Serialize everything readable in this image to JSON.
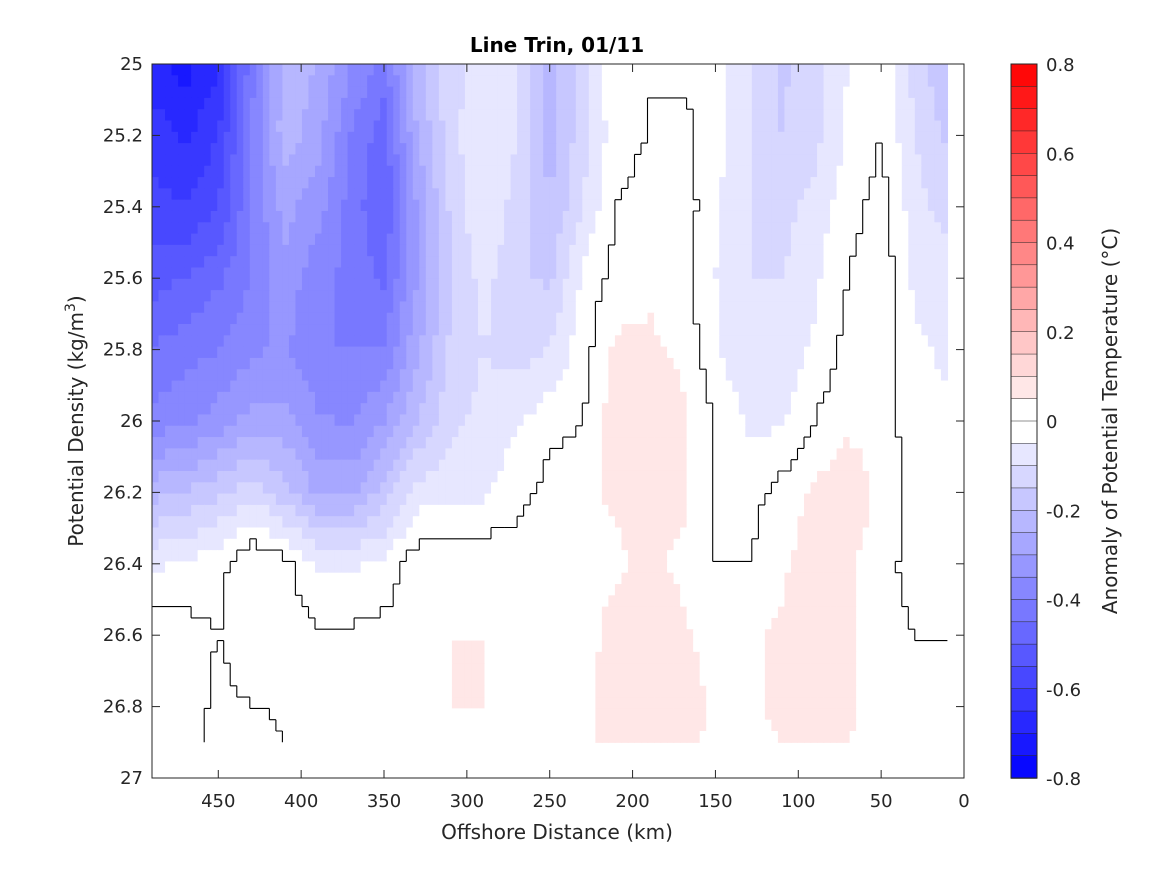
{
  "chart_data": {
    "type": "contour",
    "title": "Line Trin, 01/11",
    "xlabel": "Offshore Distance (km)",
    "ylabel": "Potential Density (kg/m",
    "ylabel_superscript": "3",
    "ylabel_suffix": ")",
    "colorbar_label": "Anomaly of Potential Temperature (°C)",
    "xlim": [
      490,
      0
    ],
    "ylim": [
      25,
      27
    ],
    "x_reversed": true,
    "y_reversed": true,
    "xticks": [
      450,
      400,
      350,
      300,
      250,
      200,
      150,
      100,
      50,
      0
    ],
    "yticks": [
      25,
      25.2,
      25.4,
      25.6,
      25.8,
      26,
      26.2,
      26.4,
      26.6,
      26.8,
      27
    ],
    "xtick_labels": [
      "450",
      "400",
      "350",
      "300",
      "250",
      "200",
      "150",
      "100",
      "50",
      "0"
    ],
    "ytick_labels": [
      "25",
      "25.2",
      "25.4",
      "25.6",
      "25.8",
      "26",
      "26.2",
      "26.4",
      "26.6",
      "26.8",
      "27"
    ],
    "clim": [
      -0.8,
      0.8
    ],
    "colorbar_levels": 32,
    "colorbar_ticks": [
      0.8,
      0.6,
      0.4,
      0.2,
      0,
      -0.2,
      -0.4,
      -0.6,
      -0.8
    ],
    "colorbar_tick_labels": [
      "0.8",
      "0.6",
      "0.4",
      "0.2",
      "0",
      "-0.2",
      "-0.4",
      "-0.6",
      "-0.8"
    ],
    "colormap": {
      "negative": "#0000ff",
      "zero": "#ffffff",
      "positive": "#ff0000"
    },
    "x": [
      490,
      470,
      450,
      430,
      410,
      390,
      370,
      350,
      330,
      310,
      290,
      270,
      250,
      230,
      210,
      190,
      170,
      150,
      130,
      110,
      90,
      70,
      50,
      30,
      10
    ],
    "y": [
      25.0,
      25.2,
      25.4,
      25.6,
      25.8,
      26.0,
      26.2,
      26.4,
      26.6,
      26.8,
      26.9
    ],
    "z": [
      [
        -0.68,
        -0.72,
        -0.66,
        -0.42,
        -0.22,
        -0.25,
        -0.35,
        -0.42,
        -0.22,
        -0.12,
        -0.08,
        -0.1,
        -0.22,
        -0.12,
        0.0,
        0.0,
        -0.02,
        -0.02,
        -0.1,
        -0.16,
        -0.12,
        -0.05,
        0.0,
        -0.12,
        -0.2
      ],
      [
        -0.62,
        -0.66,
        -0.6,
        -0.4,
        -0.22,
        -0.28,
        -0.4,
        -0.48,
        -0.25,
        -0.12,
        -0.05,
        -0.1,
        -0.22,
        -0.12,
        -0.02,
        0.0,
        0.02,
        -0.03,
        -0.1,
        -0.15,
        -0.12,
        -0.04,
        0.0,
        -0.1,
        -0.16
      ],
      [
        -0.58,
        -0.6,
        -0.55,
        -0.4,
        -0.28,
        -0.33,
        -0.42,
        -0.5,
        -0.3,
        -0.14,
        -0.05,
        -0.12,
        -0.2,
        -0.1,
        0.0,
        0.02,
        0.03,
        -0.04,
        -0.1,
        -0.12,
        -0.08,
        -0.02,
        0.02,
        -0.08,
        -0.12
      ],
      [
        -0.52,
        -0.5,
        -0.46,
        -0.4,
        -0.32,
        -0.38,
        -0.42,
        -0.46,
        -0.3,
        -0.16,
        -0.08,
        -0.14,
        -0.16,
        -0.04,
        0.02,
        0.04,
        0.02,
        -0.05,
        -0.1,
        -0.1,
        -0.06,
        0.0,
        0.04,
        -0.06,
        -0.08
      ],
      [
        -0.45,
        -0.42,
        -0.4,
        -0.36,
        -0.34,
        -0.4,
        -0.4,
        -0.4,
        -0.26,
        -0.14,
        -0.1,
        -0.12,
        -0.1,
        -0.02,
        0.06,
        0.06,
        0.04,
        -0.04,
        -0.1,
        -0.08,
        -0.04,
        0.02,
        0.03,
        -0.04,
        -0.06
      ],
      [
        -0.38,
        -0.36,
        -0.33,
        -0.28,
        -0.28,
        -0.34,
        -0.36,
        -0.3,
        -0.2,
        -0.12,
        -0.08,
        -0.06,
        -0.02,
        0.0,
        0.08,
        0.08,
        0.06,
        0.0,
        -0.06,
        -0.06,
        0.0,
        0.04,
        0.03,
        -0.03,
        -0.04
      ],
      [
        -0.22,
        -0.2,
        -0.16,
        -0.12,
        -0.18,
        -0.26,
        -0.26,
        -0.18,
        -0.08,
        -0.06,
        -0.06,
        -0.02,
        0.02,
        0.04,
        0.06,
        0.08,
        0.06,
        0.0,
        -0.02,
        0.02,
        0.06,
        0.08,
        0.04,
        -0.02,
        -0.03
      ],
      [
        -0.06,
        -0.04,
        -0.02,
        0.05,
        0.02,
        -0.06,
        -0.06,
        -0.04,
        0.03,
        0.04,
        0.04,
        0.03,
        0.04,
        0.03,
        0.04,
        0.06,
        0.04,
        0.0,
        0.0,
        0.04,
        0.08,
        0.06,
        0.02,
        -0.02,
        0.0
      ],
      [
        0.03,
        0.02,
        0.0,
        0.04,
        0.03,
        0.01,
        0.01,
        0.02,
        0.04,
        0.05,
        0.05,
        0.04,
        0.01,
        0.03,
        0.07,
        0.08,
        0.06,
        0.03,
        0.04,
        0.06,
        0.08,
        0.06,
        0.02,
        0.0,
        0.0
      ],
      [
        0.04,
        0.04,
        -0.02,
        0.0,
        0.01,
        0.0,
        0.01,
        0.01,
        0.04,
        0.05,
        0.05,
        0.04,
        0.03,
        0.04,
        0.07,
        0.1,
        0.08,
        0.04,
        0.04,
        0.06,
        0.08,
        0.06,
        0.03,
        0.02,
        0.0
      ],
      [
        0.03,
        0.03,
        -0.02,
        -0.04,
        0.0,
        0.0,
        0.01,
        0.01,
        0.03,
        0.04,
        0.04,
        0.04,
        0.03,
        0.04,
        0.06,
        0.08,
        0.06,
        0.04,
        0.04,
        0.05,
        0.06,
        0.05,
        0.03,
        0.02,
        0.0
      ]
    ]
  }
}
